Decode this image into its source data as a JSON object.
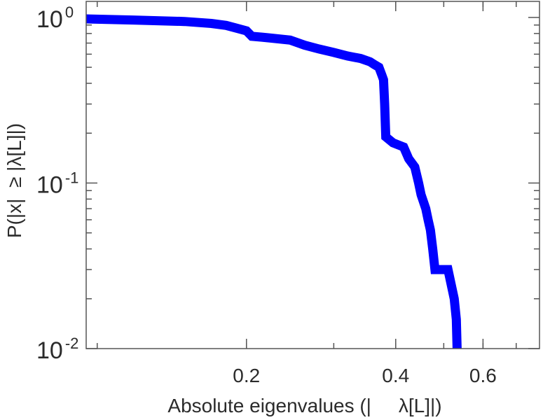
{
  "chart_data": {
    "type": "line",
    "title": "",
    "xlabel": "Absolute eigenvalues (|     λ[L]|)",
    "ylabel": "P(|x|  ≥ |λ[L]|)",
    "x_scale": "log",
    "y_scale": "log",
    "xlim": [
      0.095,
      0.78
    ],
    "ylim": [
      0.01,
      1.25
    ],
    "x_ticks": [
      {
        "value": 0.2,
        "label": "0.2"
      },
      {
        "value": 0.4,
        "label": "0.4"
      },
      {
        "value": 0.6,
        "label": "0.6"
      }
    ],
    "y_ticks": [
      {
        "value": 1,
        "base": "10",
        "exponent": "0"
      },
      {
        "value": 0.1,
        "base": "10",
        "exponent": "-1"
      },
      {
        "value": 0.01,
        "base": "10",
        "exponent": "-2"
      }
    ],
    "grid": false,
    "series_color": "#0000ff",
    "points": [
      [
        0.095,
        0.98
      ],
      [
        0.118,
        0.965
      ],
      [
        0.15,
        0.945
      ],
      [
        0.17,
        0.92
      ],
      [
        0.182,
        0.895
      ],
      [
        0.19,
        0.865
      ],
      [
        0.2,
        0.83
      ],
      [
        0.205,
        0.77
      ],
      [
        0.215,
        0.76
      ],
      [
        0.245,
        0.73
      ],
      [
        0.262,
        0.68
      ],
      [
        0.28,
        0.645
      ],
      [
        0.3,
        0.615
      ],
      [
        0.32,
        0.585
      ],
      [
        0.34,
        0.565
      ],
      [
        0.355,
        0.54
      ],
      [
        0.362,
        0.52
      ],
      [
        0.37,
        0.5
      ],
      [
        0.375,
        0.45
      ],
      [
        0.378,
        0.42
      ],
      [
        0.38,
        0.3
      ],
      [
        0.382,
        0.19
      ],
      [
        0.395,
        0.175
      ],
      [
        0.415,
        0.165
      ],
      [
        0.425,
        0.14
      ],
      [
        0.437,
        0.125
      ],
      [
        0.445,
        0.1
      ],
      [
        0.45,
        0.085
      ],
      [
        0.46,
        0.07
      ],
      [
        0.465,
        0.06
      ],
      [
        0.47,
        0.052
      ],
      [
        0.475,
        0.04
      ],
      [
        0.48,
        0.03
      ],
      [
        0.51,
        0.03
      ],
      [
        0.525,
        0.02
      ],
      [
        0.53,
        0.015
      ],
      [
        0.532,
        0.01
      ]
    ]
  }
}
